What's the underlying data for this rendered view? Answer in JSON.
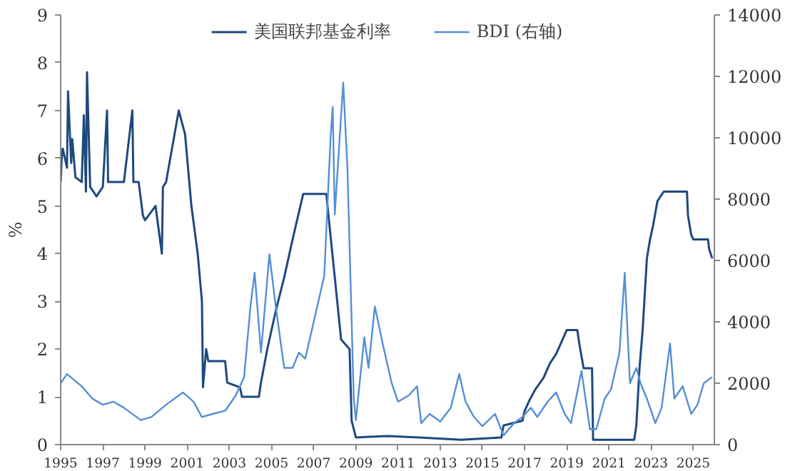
{
  "chart_data": {
    "type": "line",
    "ylabel": "%",
    "legend": "top",
    "grid": false,
    "xlim": [
      1995,
      2026
    ],
    "xticks": [
      1995,
      1997,
      1999,
      2001,
      2003,
      2005,
      2007,
      2009,
      2011,
      2013,
      2015,
      2017,
      2019,
      2021,
      2023,
      2025
    ],
    "ylim": [
      0,
      9
    ],
    "yticks": [
      0,
      1,
      2,
      3,
      4,
      5,
      6,
      7,
      8,
      9
    ],
    "y2lim": [
      0,
      14000
    ],
    "y2ticks": [
      0,
      2000,
      4000,
      6000,
      8000,
      10000,
      12000,
      14000
    ],
    "series": [
      {
        "name": "美国联邦基金利率",
        "color": "#1f497d",
        "x": [
          1995.0,
          1995.05,
          1995.1,
          1995.3,
          1995.35,
          1995.5,
          1995.55,
          1995.7,
          1996.0,
          1996.1,
          1996.2,
          1996.25,
          1996.4,
          1996.7,
          1997.0,
          1997.2,
          1997.25,
          1997.5,
          1998.0,
          1998.4,
          1998.45,
          1998.7,
          1998.9,
          1999.0,
          1999.5,
          1999.8,
          1999.85,
          2000.0,
          2000.4,
          2000.6,
          2000.9,
          2001.0,
          2001.2,
          2001.5,
          2001.7,
          2001.75,
          2001.9,
          2002.0,
          2002.8,
          2002.9,
          2003.5,
          2003.6,
          2004.4,
          2004.5,
          2004.8,
          2005.2,
          2005.6,
          2006.0,
          2006.5,
          2007.6,
          2007.7,
          2008.0,
          2008.3,
          2008.7,
          2008.8,
          2009.0,
          2010.5,
          2012.0,
          2014.0,
          2015.9,
          2016.0,
          2016.9,
          2017.0,
          2017.2,
          2017.5,
          2017.9,
          2018.2,
          2018.5,
          2018.8,
          2019.0,
          2019.5,
          2019.6,
          2019.8,
          2020.2,
          2020.25,
          2022.2,
          2022.3,
          2022.45,
          2022.6,
          2022.8,
          2022.95,
          2023.1,
          2023.3,
          2023.6,
          2024.7,
          2024.75,
          2024.9,
          2025.0,
          2025.7,
          2025.75,
          2025.9
        ],
        "values": [
          5.5,
          6.0,
          6.2,
          5.8,
          7.4,
          5.9,
          6.4,
          5.6,
          5.5,
          6.9,
          5.3,
          7.8,
          5.4,
          5.2,
          5.4,
          7.0,
          5.5,
          5.5,
          5.5,
          7.0,
          5.5,
          5.5,
          4.8,
          4.7,
          5.0,
          4.0,
          5.4,
          5.5,
          6.5,
          7.0,
          6.5,
          6.0,
          5.0,
          4.0,
          3.0,
          1.2,
          2.0,
          1.75,
          1.75,
          1.3,
          1.2,
          1.0,
          1.0,
          1.3,
          2.0,
          2.8,
          3.5,
          4.3,
          5.25,
          5.25,
          4.8,
          3.5,
          2.2,
          2.0,
          0.5,
          0.15,
          0.18,
          0.15,
          0.1,
          0.15,
          0.4,
          0.5,
          0.7,
          0.9,
          1.15,
          1.4,
          1.7,
          1.9,
          2.2,
          2.4,
          2.4,
          2.1,
          1.6,
          1.6,
          0.1,
          0.1,
          0.4,
          1.6,
          2.4,
          3.9,
          4.3,
          4.6,
          5.1,
          5.3,
          5.3,
          4.8,
          4.4,
          4.3,
          4.3,
          4.1,
          3.9
        ]
      },
      {
        "name": "BDI (右轴)",
        "color": "#558ed5",
        "axis": "y2",
        "x": [
          1995.0,
          1995.3,
          1996.0,
          1996.5,
          1997.0,
          1997.5,
          1998.0,
          1998.8,
          1999.3,
          2000.0,
          2000.8,
          2001.3,
          2001.7,
          2002.2,
          2002.8,
          2003.3,
          2003.7,
          2004.0,
          2004.2,
          2004.5,
          2004.9,
          2005.2,
          2005.6,
          2006.0,
          2006.3,
          2006.6,
          2007.0,
          2007.5,
          2007.8,
          2007.9,
          2008.0,
          2008.4,
          2008.6,
          2008.9,
          2009.0,
          2009.4,
          2009.6,
          2009.9,
          2010.3,
          2010.7,
          2011.0,
          2011.5,
          2011.9,
          2012.1,
          2012.5,
          2013.0,
          2013.5,
          2013.9,
          2014.2,
          2014.6,
          2015.0,
          2015.6,
          2016.0,
          2016.5,
          2016.9,
          2017.3,
          2017.6,
          2018.1,
          2018.5,
          2018.9,
          2019.2,
          2019.7,
          2020.1,
          2020.4,
          2020.8,
          2021.1,
          2021.5,
          2021.75,
          2022.0,
          2022.3,
          2022.5,
          2022.8,
          2023.2,
          2023.5,
          2023.9,
          2024.1,
          2024.5,
          2024.9,
          2025.2,
          2025.5,
          2025.9
        ],
        "values": [
          2000,
          2300,
          1900,
          1500,
          1300,
          1400,
          1200,
          800,
          900,
          1300,
          1700,
          1400,
          900,
          1000,
          1100,
          1600,
          2200,
          4500,
          5600,
          3000,
          6200,
          4500,
          2500,
          2500,
          3000,
          2800,
          4000,
          5500,
          10000,
          11000,
          7500,
          11800,
          9000,
          1500,
          800,
          3500,
          2500,
          4500,
          3200,
          2000,
          1400,
          1600,
          1900,
          700,
          1000,
          750,
          1200,
          2300,
          1400,
          900,
          600,
          1000,
          300,
          700,
          900,
          1200,
          900,
          1400,
          1700,
          1000,
          700,
          2400,
          500,
          500,
          1500,
          1800,
          3000,
          5600,
          2000,
          2500,
          2000,
          1500,
          700,
          1200,
          3300,
          1500,
          1900,
          1000,
          1300,
          2000,
          2200
        ]
      }
    ]
  }
}
